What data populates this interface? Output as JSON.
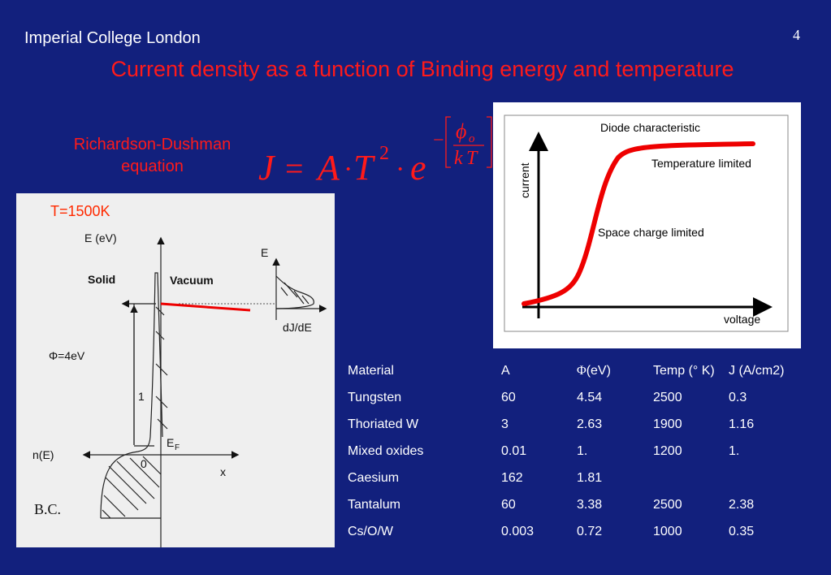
{
  "header": {
    "institution": "Imperial College London",
    "page_number": "4"
  },
  "title": "Current density as a function of Binding energy and temperature",
  "subtitle": "Richardson-Dushman equation",
  "formula": {
    "lhs": "J",
    "eq": "=",
    "A": "A",
    "dot": "·",
    "T": "T",
    "T_exp": "2",
    "e": "e",
    "minus": "−",
    "phi": "ϕ",
    "phi_sub": "o",
    "k": "k",
    "T2": "T"
  },
  "band_diagram": {
    "temperature": "T=1500K",
    "energy_axis": "E (eV)",
    "solid": "Solid",
    "vacuum": "Vacuum",
    "work_function": "Φ=4eV",
    "level_one": "1",
    "fermi_E": "E",
    "fermi_sub": "F",
    "density_label": "n(E)",
    "origin": "0",
    "x_axis": "x",
    "inset_E": "E",
    "inset_x": "dJ/dE",
    "author": "B.C."
  },
  "diode": {
    "title": "Diode characteristic",
    "ylabel": "current",
    "xlabel": "voltage",
    "temp_limited": "Temperature limited",
    "space_limited": "Space charge limited",
    "curve_color": "#ee0000"
  },
  "table": {
    "headers": [
      "Material",
      "A",
      "(eV)",
      "Temp (° K)",
      "J (A/cm2)"
    ],
    "phi_symbol": "Φ",
    "rows": [
      [
        "Tungsten",
        "60",
        "4.54",
        "2500",
        "0.3"
      ],
      [
        "Thoriated W",
        "3",
        "2.63",
        "1900",
        "1.16"
      ],
      [
        "Mixed oxides",
        "0.01",
        "1.",
        "1200",
        "1."
      ],
      [
        "Caesium",
        "162",
        "1.81",
        "",
        ""
      ],
      [
        "Tantalum",
        "60",
        "3.38",
        "2500",
        "2.38"
      ],
      [
        "Cs/O/W",
        "0.003",
        "0.72",
        "1000",
        "0.35"
      ]
    ]
  },
  "colors": {
    "background": "#12207d",
    "accent_red": "#ff1a1a",
    "text": "#ffffff"
  }
}
